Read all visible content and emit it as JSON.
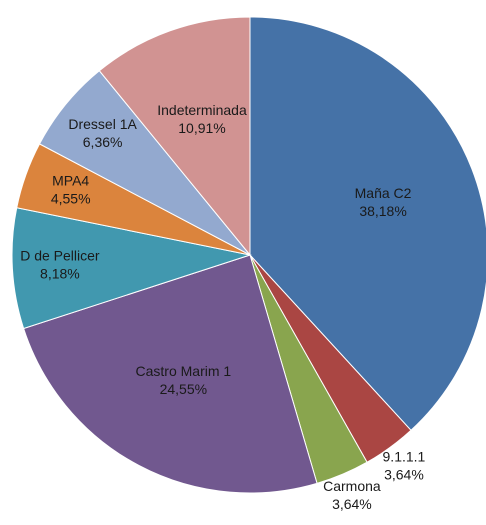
{
  "chart_data": {
    "type": "pie",
    "categories": [
      "Maña C2",
      "9.1.1.1",
      "Carmona",
      "Castro Marim 1",
      "D de Pellicer",
      "MPA4",
      "Dressel 1A",
      "Indeterminada"
    ],
    "values": [
      38.18,
      3.64,
      3.64,
      24.55,
      8.18,
      4.55,
      6.36,
      10.91
    ],
    "value_labels": [
      "38,18%",
      "3,64%",
      "3,64%",
      "24,55%",
      "8,18%",
      "4,55%",
      "6,36%",
      "10,91%"
    ],
    "colors": [
      "#4572a7",
      "#aa4643",
      "#89a54e",
      "#71588f",
      "#4198af",
      "#db843d",
      "#93a9cf",
      "#d19392"
    ]
  }
}
